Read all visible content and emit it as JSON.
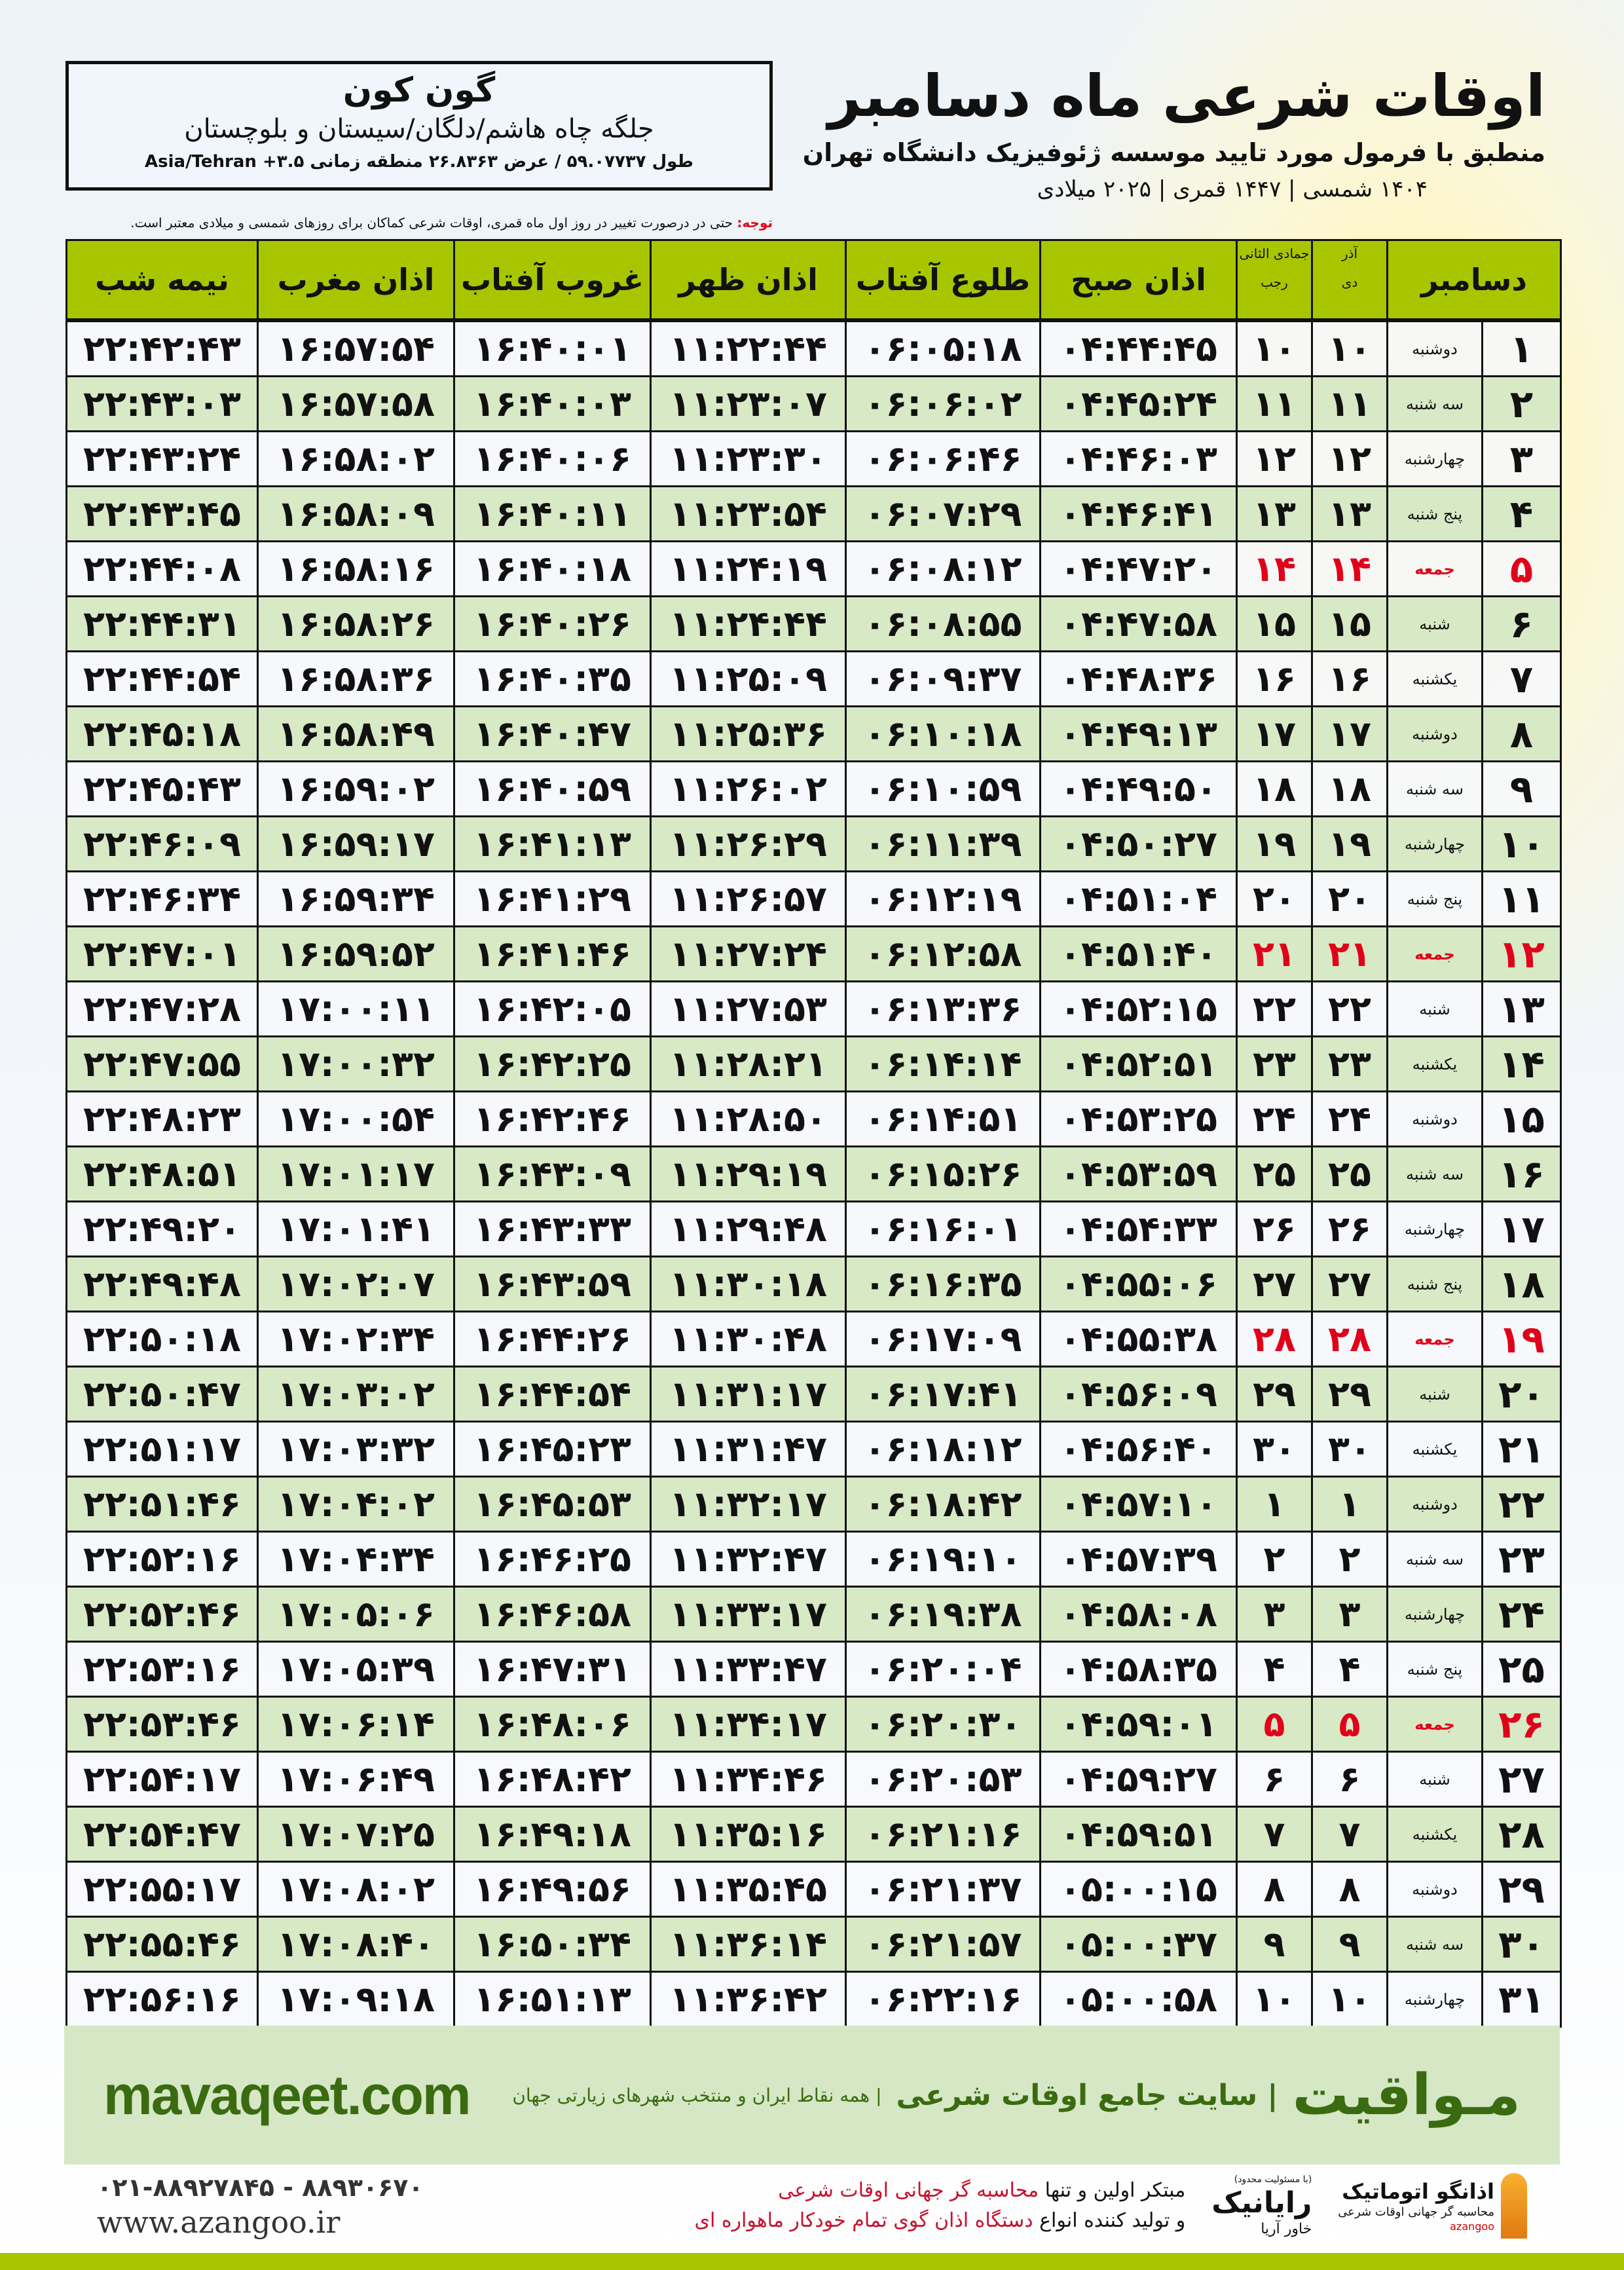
{
  "location": {
    "city": "گون کون",
    "region": "جلگه چاه هاشم/دلگان/سیستان و بلوچستان",
    "coords": "طول ۵۹.۰۷۷۳۷ / عرض ۲۶.۸۳۶۳ منطقه زمانی ۳.۵+ Asia/Tehran"
  },
  "header": {
    "title": "اوقات شرعی ماه دسامبر",
    "subtitle": "منطبق با فرمول مورد تایید موسسه ژئوفیزیک دانشگاه تهران",
    "years": "۱۴۰۴ شمسی | ۱۴۴۷ قمری | ۲۰۲۵ میلادی"
  },
  "note": {
    "label": "توجه:",
    "text": " حتی در درصورت تغییر در روز اول ماه قمری، اوقات شرعی کماکان برای روزهای شمسی و میلادی معتبر است."
  },
  "table": {
    "headers": {
      "day": "دسامبر",
      "solar_top": "آذر",
      "solar_bottom": "دی",
      "lunar_top": "جمادی الثانی",
      "lunar_bottom": "رجب",
      "fajr": "اذان صبح",
      "sunrise": "طلوع آفتاب",
      "dhuhr": "اذان ظهر",
      "sunset": "غروب آفتاب",
      "maghrib": "اذان مغرب",
      "midnight": "نیمه شب"
    },
    "holiday_color": "#e0001a",
    "header_color": "#a8c600",
    "rows": [
      [
        "۱",
        "دوشنبه",
        "۱۰",
        "۱۰",
        "۰۴:۴۴:۴۵",
        "۰۶:۰۵:۱۸",
        "۱۱:۲۲:۴۴",
        "۱۶:۴۰:۰۱",
        "۱۶:۵۷:۵۴",
        "۲۲:۴۲:۴۳",
        false
      ],
      [
        "۲",
        "سه شنبه",
        "۱۱",
        "۱۱",
        "۰۴:۴۵:۲۴",
        "۰۶:۰۶:۰۲",
        "۱۱:۲۳:۰۷",
        "۱۶:۴۰:۰۳",
        "۱۶:۵۷:۵۸",
        "۲۲:۴۳:۰۳",
        false
      ],
      [
        "۳",
        "چهارشنبه",
        "۱۲",
        "۱۲",
        "۰۴:۴۶:۰۳",
        "۰۶:۰۶:۴۶",
        "۱۱:۲۳:۳۰",
        "۱۶:۴۰:۰۶",
        "۱۶:۵۸:۰۲",
        "۲۲:۴۳:۲۴",
        false
      ],
      [
        "۴",
        "پنج شنبه",
        "۱۳",
        "۱۳",
        "۰۴:۴۶:۴۱",
        "۰۶:۰۷:۲۹",
        "۱۱:۲۳:۵۴",
        "۱۶:۴۰:۱۱",
        "۱۶:۵۸:۰۹",
        "۲۲:۴۳:۴۵",
        false
      ],
      [
        "۵",
        "جمعه",
        "۱۴",
        "۱۴",
        "۰۴:۴۷:۲۰",
        "۰۶:۰۸:۱۲",
        "۱۱:۲۴:۱۹",
        "۱۶:۴۰:۱۸",
        "۱۶:۵۸:۱۶",
        "۲۲:۴۴:۰۸",
        true
      ],
      [
        "۶",
        "شنبه",
        "۱۵",
        "۱۵",
        "۰۴:۴۷:۵۸",
        "۰۶:۰۸:۵۵",
        "۱۱:۲۴:۴۴",
        "۱۶:۴۰:۲۶",
        "۱۶:۵۸:۲۶",
        "۲۲:۴۴:۳۱",
        false
      ],
      [
        "۷",
        "یکشنبه",
        "۱۶",
        "۱۶",
        "۰۴:۴۸:۳۶",
        "۰۶:۰۹:۳۷",
        "۱۱:۲۵:۰۹",
        "۱۶:۴۰:۳۵",
        "۱۶:۵۸:۳۶",
        "۲۲:۴۴:۵۴",
        false
      ],
      [
        "۸",
        "دوشنبه",
        "۱۷",
        "۱۷",
        "۰۴:۴۹:۱۳",
        "۰۶:۱۰:۱۸",
        "۱۱:۲۵:۳۶",
        "۱۶:۴۰:۴۷",
        "۱۶:۵۸:۴۹",
        "۲۲:۴۵:۱۸",
        false
      ],
      [
        "۹",
        "سه شنبه",
        "۱۸",
        "۱۸",
        "۰۴:۴۹:۵۰",
        "۰۶:۱۰:۵۹",
        "۱۱:۲۶:۰۲",
        "۱۶:۴۰:۵۹",
        "۱۶:۵۹:۰۲",
        "۲۲:۴۵:۴۳",
        false
      ],
      [
        "۱۰",
        "چهارشنبه",
        "۱۹",
        "۱۹",
        "۰۴:۵۰:۲۷",
        "۰۶:۱۱:۳۹",
        "۱۱:۲۶:۲۹",
        "۱۶:۴۱:۱۳",
        "۱۶:۵۹:۱۷",
        "۲۲:۴۶:۰۹",
        false
      ],
      [
        "۱۱",
        "پنج شنبه",
        "۲۰",
        "۲۰",
        "۰۴:۵۱:۰۴",
        "۰۶:۱۲:۱۹",
        "۱۱:۲۶:۵۷",
        "۱۶:۴۱:۲۹",
        "۱۶:۵۹:۳۴",
        "۲۲:۴۶:۳۴",
        false
      ],
      [
        "۱۲",
        "جمعه",
        "۲۱",
        "۲۱",
        "۰۴:۵۱:۴۰",
        "۰۶:۱۲:۵۸",
        "۱۱:۲۷:۲۴",
        "۱۶:۴۱:۴۶",
        "۱۶:۵۹:۵۲",
        "۲۲:۴۷:۰۱",
        true
      ],
      [
        "۱۳",
        "شنبه",
        "۲۲",
        "۲۲",
        "۰۴:۵۲:۱۵",
        "۰۶:۱۳:۳۶",
        "۱۱:۲۷:۵۳",
        "۱۶:۴۲:۰۵",
        "۱۷:۰۰:۱۱",
        "۲۲:۴۷:۲۸",
        false
      ],
      [
        "۱۴",
        "یکشنبه",
        "۲۳",
        "۲۳",
        "۰۴:۵۲:۵۱",
        "۰۶:۱۴:۱۴",
        "۱۱:۲۸:۲۱",
        "۱۶:۴۲:۲۵",
        "۱۷:۰۰:۳۲",
        "۲۲:۴۷:۵۵",
        false
      ],
      [
        "۱۵",
        "دوشنبه",
        "۲۴",
        "۲۴",
        "۰۴:۵۳:۲۵",
        "۰۶:۱۴:۵۱",
        "۱۱:۲۸:۵۰",
        "۱۶:۴۲:۴۶",
        "۱۷:۰۰:۵۴",
        "۲۲:۴۸:۲۳",
        false
      ],
      [
        "۱۶",
        "سه شنبه",
        "۲۵",
        "۲۵",
        "۰۴:۵۳:۵۹",
        "۰۶:۱۵:۲۶",
        "۱۱:۲۹:۱۹",
        "۱۶:۴۳:۰۹",
        "۱۷:۰۱:۱۷",
        "۲۲:۴۸:۵۱",
        false
      ],
      [
        "۱۷",
        "چهارشنبه",
        "۲۶",
        "۲۶",
        "۰۴:۵۴:۳۳",
        "۰۶:۱۶:۰۱",
        "۱۱:۲۹:۴۸",
        "۱۶:۴۳:۳۳",
        "۱۷:۰۱:۴۱",
        "۲۲:۴۹:۲۰",
        false
      ],
      [
        "۱۸",
        "پنج شنبه",
        "۲۷",
        "۲۷",
        "۰۴:۵۵:۰۶",
        "۰۶:۱۶:۳۵",
        "۱۱:۳۰:۱۸",
        "۱۶:۴۳:۵۹",
        "۱۷:۰۲:۰۷",
        "۲۲:۴۹:۴۸",
        false
      ],
      [
        "۱۹",
        "جمعه",
        "۲۸",
        "۲۸",
        "۰۴:۵۵:۳۸",
        "۰۶:۱۷:۰۹",
        "۱۱:۳۰:۴۸",
        "۱۶:۴۴:۲۶",
        "۱۷:۰۲:۳۴",
        "۲۲:۵۰:۱۸",
        true
      ],
      [
        "۲۰",
        "شنبه",
        "۲۹",
        "۲۹",
        "۰۴:۵۶:۰۹",
        "۰۶:۱۷:۴۱",
        "۱۱:۳۱:۱۷",
        "۱۶:۴۴:۵۴",
        "۱۷:۰۳:۰۲",
        "۲۲:۵۰:۴۷",
        false
      ],
      [
        "۲۱",
        "یکشنبه",
        "۳۰",
        "۳۰",
        "۰۴:۵۶:۴۰",
        "۰۶:۱۸:۱۲",
        "۱۱:۳۱:۴۷",
        "۱۶:۴۵:۲۳",
        "۱۷:۰۳:۳۲",
        "۲۲:۵۱:۱۷",
        false
      ],
      [
        "۲۲",
        "دوشنبه",
        "۱",
        "۱",
        "۰۴:۵۷:۱۰",
        "۰۶:۱۸:۴۲",
        "۱۱:۳۲:۱۷",
        "۱۶:۴۵:۵۳",
        "۱۷:۰۴:۰۲",
        "۲۲:۵۱:۴۶",
        false
      ],
      [
        "۲۳",
        "سه شنبه",
        "۲",
        "۲",
        "۰۴:۵۷:۳۹",
        "۰۶:۱۹:۱۰",
        "۱۱:۳۲:۴۷",
        "۱۶:۴۶:۲۵",
        "۱۷:۰۴:۳۴",
        "۲۲:۵۲:۱۶",
        false
      ],
      [
        "۲۴",
        "چهارشنبه",
        "۳",
        "۳",
        "۰۴:۵۸:۰۸",
        "۰۶:۱۹:۳۸",
        "۱۱:۳۳:۱۷",
        "۱۶:۴۶:۵۸",
        "۱۷:۰۵:۰۶",
        "۲۲:۵۲:۴۶",
        false
      ],
      [
        "۲۵",
        "پنج شنبه",
        "۴",
        "۴",
        "۰۴:۵۸:۳۵",
        "۰۶:۲۰:۰۴",
        "۱۱:۳۳:۴۷",
        "۱۶:۴۷:۳۱",
        "۱۷:۰۵:۳۹",
        "۲۲:۵۳:۱۶",
        false
      ],
      [
        "۲۶",
        "جمعه",
        "۵",
        "۵",
        "۰۴:۵۹:۰۱",
        "۰۶:۲۰:۳۰",
        "۱۱:۳۴:۱۷",
        "۱۶:۴۸:۰۶",
        "۱۷:۰۶:۱۴",
        "۲۲:۵۳:۴۶",
        true
      ],
      [
        "۲۷",
        "شنبه",
        "۶",
        "۶",
        "۰۴:۵۹:۲۷",
        "۰۶:۲۰:۵۳",
        "۱۱:۳۴:۴۶",
        "۱۶:۴۸:۴۲",
        "۱۷:۰۶:۴۹",
        "۲۲:۵۴:۱۷",
        false
      ],
      [
        "۲۸",
        "یکشنبه",
        "۷",
        "۷",
        "۰۴:۵۹:۵۱",
        "۰۶:۲۱:۱۶",
        "۱۱:۳۵:۱۶",
        "۱۶:۴۹:۱۸",
        "۱۷:۰۷:۲۵",
        "۲۲:۵۴:۴۷",
        false
      ],
      [
        "۲۹",
        "دوشنبه",
        "۸",
        "۸",
        "۰۵:۰۰:۱۵",
        "۰۶:۲۱:۳۷",
        "۱۱:۳۵:۴۵",
        "۱۶:۴۹:۵۶",
        "۱۷:۰۸:۰۲",
        "۲۲:۵۵:۱۷",
        false
      ],
      [
        "۳۰",
        "سه شنبه",
        "۹",
        "۹",
        "۰۵:۰۰:۳۷",
        "۰۶:۲۱:۵۷",
        "۱۱:۳۶:۱۴",
        "۱۶:۵۰:۳۴",
        "۱۷:۰۸:۴۰",
        "۲۲:۵۵:۴۶",
        false
      ],
      [
        "۳۱",
        "چهارشنبه",
        "۱۰",
        "۱۰",
        "۰۵:۰۰:۵۸",
        "۰۶:۲۲:۱۶",
        "۱۱:۳۶:۴۲",
        "۱۶:۵۱:۱۳",
        "۱۷:۰۹:۱۸",
        "۲۲:۵۶:۱۶",
        false
      ]
    ]
  },
  "footer": {
    "brand": "مـواقیت",
    "tagline": "| سایت جامع اوقات شرعی",
    "tagline2": "| همه نقاط ایران و منتخب شهرهای زیارتی جهان",
    "site": "mavaqeet.com",
    "logo1_name": "اذانگو اتوماتیک",
    "logo1_sub": "محاسبه گر جهانی اوقات شرعی",
    "logo1_en": "azangoo",
    "logo2_name": "رایانیک",
    "logo2_side": "خاور آریا",
    "logo2_small": "(با مسئولیت محدود)",
    "promo_line1_a": "مبتکر اولین و تنها ",
    "promo_line1_b": "محاسبه گر جهانی اوقات شرعی",
    "promo_line2_a": "و تولید کننده انواع ",
    "promo_line2_b": "دستگاه اذان گوی تمام خودکار ماهواره ای",
    "phone": "۰۲۱-۸۸۹۲۷۸۴۵ - ۸۸۹۳۰۶۷۰",
    "website": "www.azangoo.ir"
  }
}
